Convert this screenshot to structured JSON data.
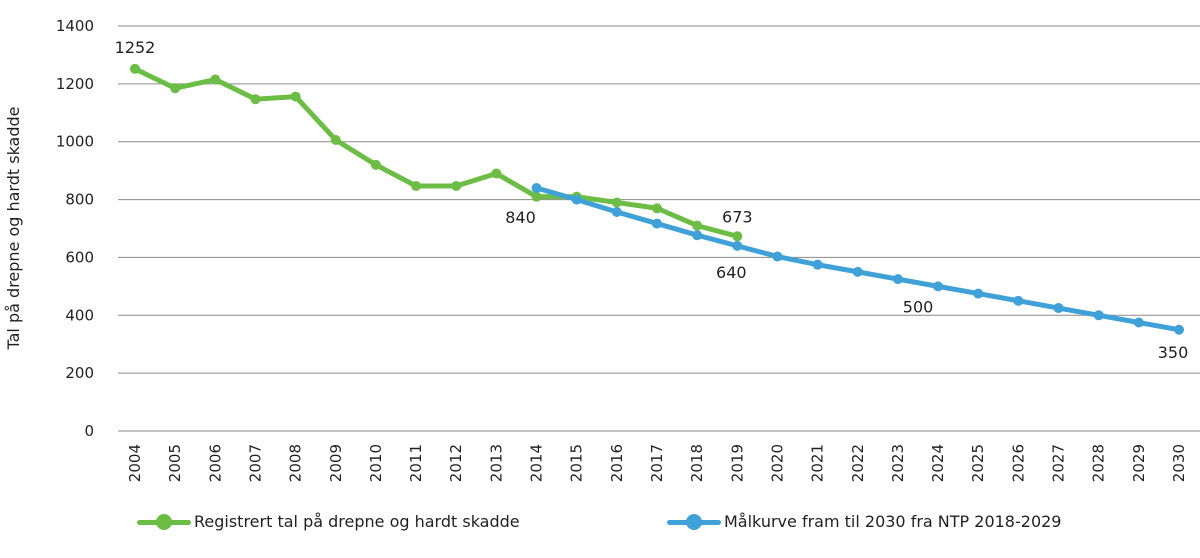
{
  "chart_data": {
    "type": "line",
    "title": "",
    "xlabel": "",
    "ylabel": "Tal på drepne og hardt skadde",
    "ylim": [
      0,
      1400
    ],
    "yticks": [
      0,
      200,
      400,
      600,
      800,
      1000,
      1200,
      1400
    ],
    "grid": true,
    "legend_position": "bottom",
    "categories": [
      "2004",
      "2005",
      "2006",
      "2007",
      "2008",
      "2009",
      "2010",
      "2011",
      "2012",
      "2013",
      "2014",
      "2015",
      "2016",
      "2017",
      "2018",
      "2019",
      "2020",
      "2021",
      "2022",
      "2023",
      "2024",
      "2025",
      "2026",
      "2027",
      "2028",
      "2029",
      "2030"
    ],
    "series": [
      {
        "name": "Registrert tal på drepne og hardt skadde",
        "color": "#6cbd45",
        "values": [
          1252,
          1185,
          1215,
          1147,
          1156,
          1006,
          920,
          847,
          847,
          890,
          810,
          810,
          790,
          770,
          710,
          673,
          null,
          null,
          null,
          null,
          null,
          null,
          null,
          null,
          null,
          null,
          null
        ],
        "labels": {
          "2004": "1252",
          "2019": "673"
        }
      },
      {
        "name": "Målkurve fram til 2030 fra NTP 2018-2029",
        "color": "#40a1d8",
        "values": [
          null,
          null,
          null,
          null,
          null,
          null,
          null,
          null,
          null,
          null,
          840,
          800,
          757,
          717,
          677,
          640,
          603,
          575,
          550,
          525,
          500,
          475,
          450,
          425,
          400,
          375,
          350
        ],
        "labels": {
          "2014": "840",
          "2019": "640",
          "2024": "500",
          "2030": "350"
        }
      }
    ]
  }
}
